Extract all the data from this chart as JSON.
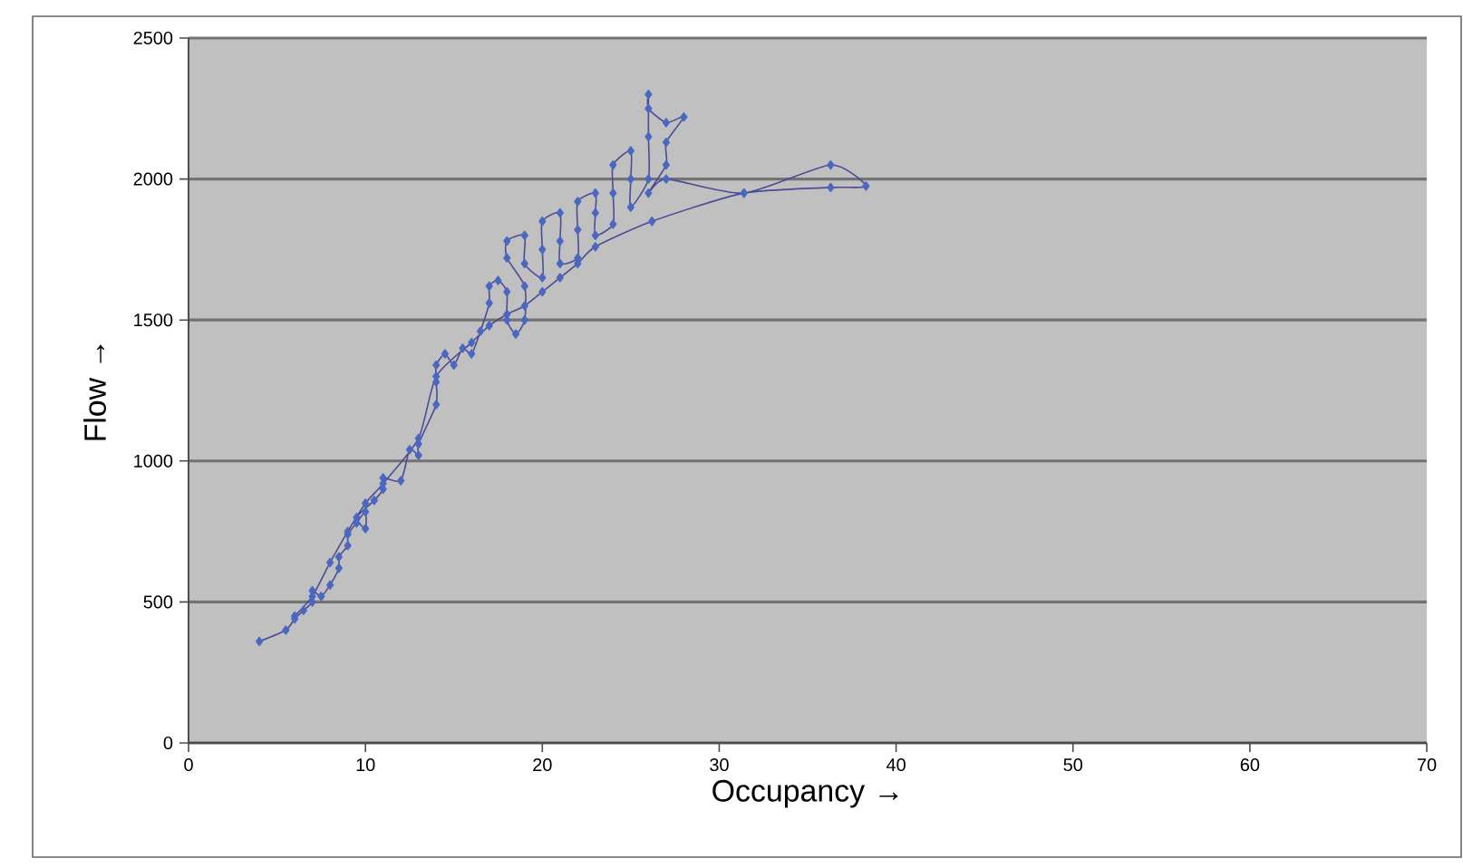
{
  "chart_data": {
    "type": "line",
    "xlabel": "Occupancy →",
    "ylabel": "Flow →",
    "xlim": [
      0,
      70
    ],
    "xticks": [
      0,
      10,
      20,
      30,
      40,
      50,
      60,
      70
    ],
    "ylim": [
      0,
      2500
    ],
    "yticks": [
      0,
      500,
      1000,
      1500,
      2000,
      2500
    ],
    "grid": "y",
    "marker": "diamond",
    "line_style": "solid",
    "series": [
      {
        "color": "#4a68c2",
        "x": [
          4,
          5.5,
          6,
          6.5,
          7,
          7,
          7.5,
          8,
          8.5,
          8.5,
          9,
          9,
          9.5,
          10,
          10,
          9.5,
          10.5,
          11,
          11,
          12,
          12.5,
          13,
          13,
          14,
          14,
          14,
          14.5,
          15,
          15.5,
          16,
          16.5,
          17,
          17,
          17.5,
          18,
          18,
          18.5,
          19,
          19,
          18,
          18,
          19,
          19,
          20,
          20,
          20,
          21,
          21,
          21,
          22,
          22,
          22,
          23,
          23,
          23,
          24,
          24,
          24,
          25,
          25,
          25,
          26,
          26,
          26,
          26,
          27,
          28,
          27,
          27,
          26,
          27,
          31.4,
          36.3,
          38.3,
          36.3,
          31.4,
          26.2,
          23,
          22,
          21,
          20,
          19,
          18,
          17,
          16,
          14,
          13,
          11,
          10,
          9,
          8,
          7,
          6
        ],
        "values": [
          360,
          400,
          440,
          470,
          500,
          540,
          520,
          560,
          620,
          660,
          700,
          740,
          780,
          820,
          760,
          800,
          860,
          900,
          940,
          930,
          1040,
          1020,
          1060,
          1200,
          1280,
          1340,
          1380,
          1340,
          1400,
          1380,
          1460,
          1560,
          1620,
          1640,
          1600,
          1500,
          1450,
          1500,
          1620,
          1720,
          1780,
          1800,
          1700,
          1650,
          1750,
          1850,
          1880,
          1780,
          1700,
          1720,
          1820,
          1920,
          1950,
          1880,
          1800,
          1840,
          1950,
          2050,
          2100,
          2000,
          1900,
          2000,
          2150,
          2300,
          2250,
          2200,
          2220,
          2130,
          2050,
          1950,
          2000,
          1950,
          2050,
          1975,
          1970,
          1950,
          1850,
          1760,
          1700,
          1650,
          1600,
          1550,
          1520,
          1480,
          1420,
          1300,
          1080,
          920,
          850,
          750,
          640,
          520,
          450
        ]
      }
    ]
  }
}
